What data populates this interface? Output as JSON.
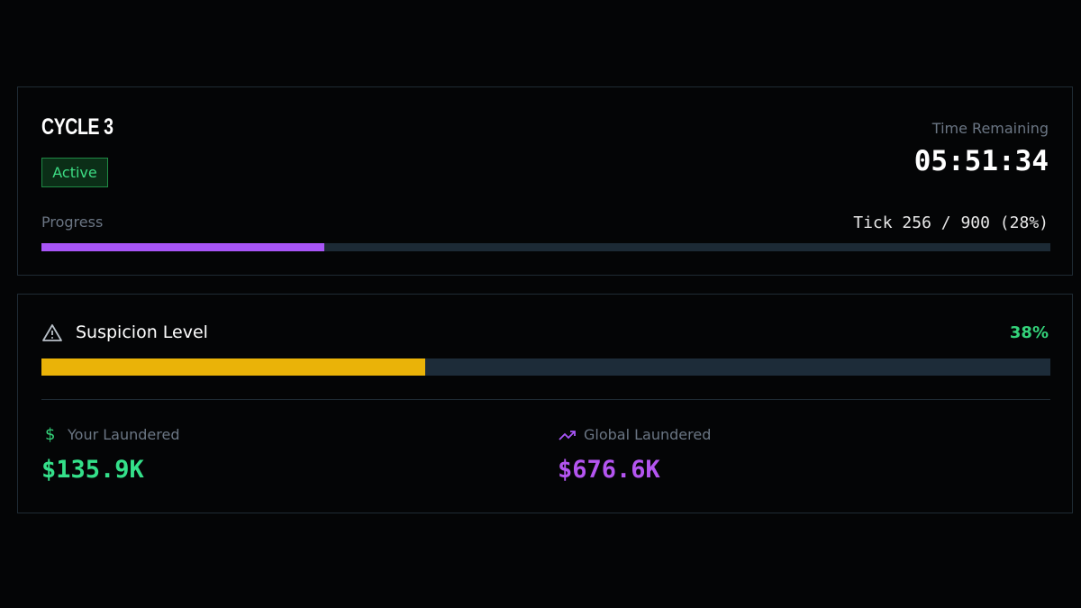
{
  "cycle_panel": {
    "title": "CYCLE 3",
    "status": "Active",
    "time_label": "Time Remaining",
    "time": "05:51:34",
    "progress": {
      "label": "Progress",
      "text": "Tick 256 / 900 (28%)",
      "value": 28
    }
  },
  "suspicion_panel": {
    "label": "Suspicion Level",
    "value": 38,
    "value_label": "38%",
    "stats": [
      {
        "label": "Your Laundered",
        "value": "$135.9K"
      },
      {
        "label": "Global Laundered",
        "value": "$676.6K"
      }
    ]
  }
}
